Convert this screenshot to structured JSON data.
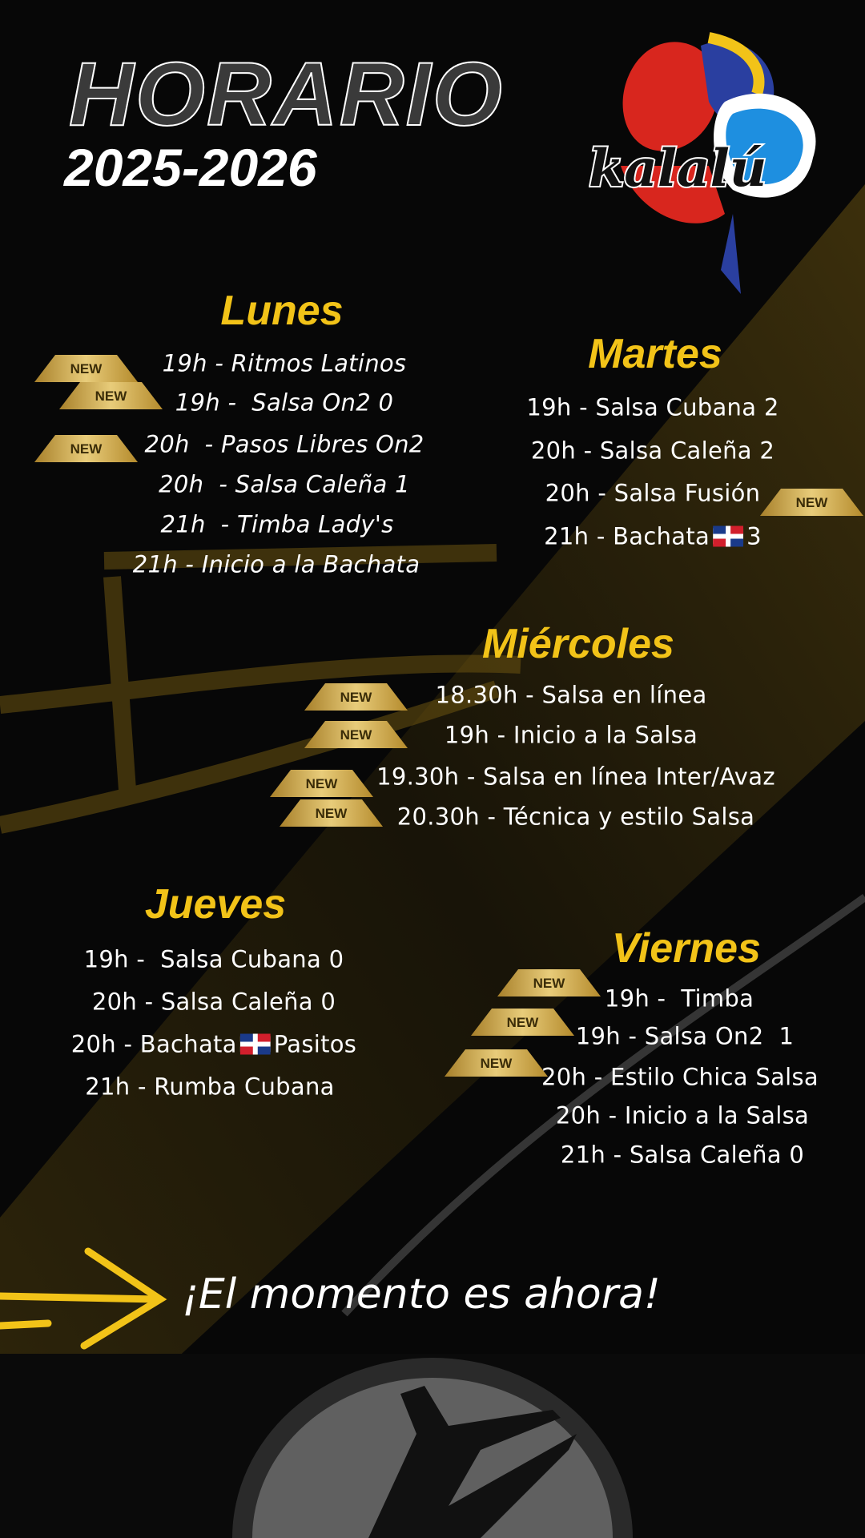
{
  "header": {
    "title": "HORARIO",
    "years": "2025-2026"
  },
  "logo": {
    "text": "kalalú"
  },
  "badge_label": "NEW",
  "colors": {
    "accent": "#f2c318",
    "background": "#070707",
    "text": "#ffffff",
    "badge": "#c9a03a"
  },
  "days": {
    "lunes": {
      "name": "Lunes",
      "classes": [
        "19h - Ritmos Latinos",
        "19h -  Salsa On2 0",
        "20h  - Pasos Libres On2",
        "20h  - Salsa Caleña 1",
        "21h  - Timba Lady's",
        "21h - Inicio a la Bachata"
      ]
    },
    "martes": {
      "name": "Martes",
      "classes": [
        "19h - Salsa Cubana 2",
        "20h - Salsa Caleña 2",
        "20h - Salsa Fusión",
        "21h - Bachata",
        "3"
      ]
    },
    "miercoles": {
      "name": "Miércoles",
      "classes": [
        "18.30h - Salsa en línea",
        "19h - Inicio a la Salsa",
        "19.30h - Salsa en línea Inter/Avaz",
        "20.30h - Técnica y estilo Salsa"
      ]
    },
    "jueves": {
      "name": "Jueves",
      "classes": [
        "19h -  Salsa Cubana 0",
        "20h - Salsa Caleña 0",
        "20h - Bachata",
        "Pasitos",
        "21h - Rumba Cubana"
      ]
    },
    "viernes": {
      "name": "Viernes",
      "classes": [
        "19h -  Timba",
        "19h - Salsa On2  1",
        "20h - Estilo Chica Salsa",
        "20h - Inicio a la Salsa",
        "21h - Salsa Caleña 0"
      ]
    }
  },
  "icons": {
    "flag": "dominican-republic-flag-icon",
    "arrow": "arrow-right-icon"
  },
  "tagline": "¡El momento es ahora!"
}
